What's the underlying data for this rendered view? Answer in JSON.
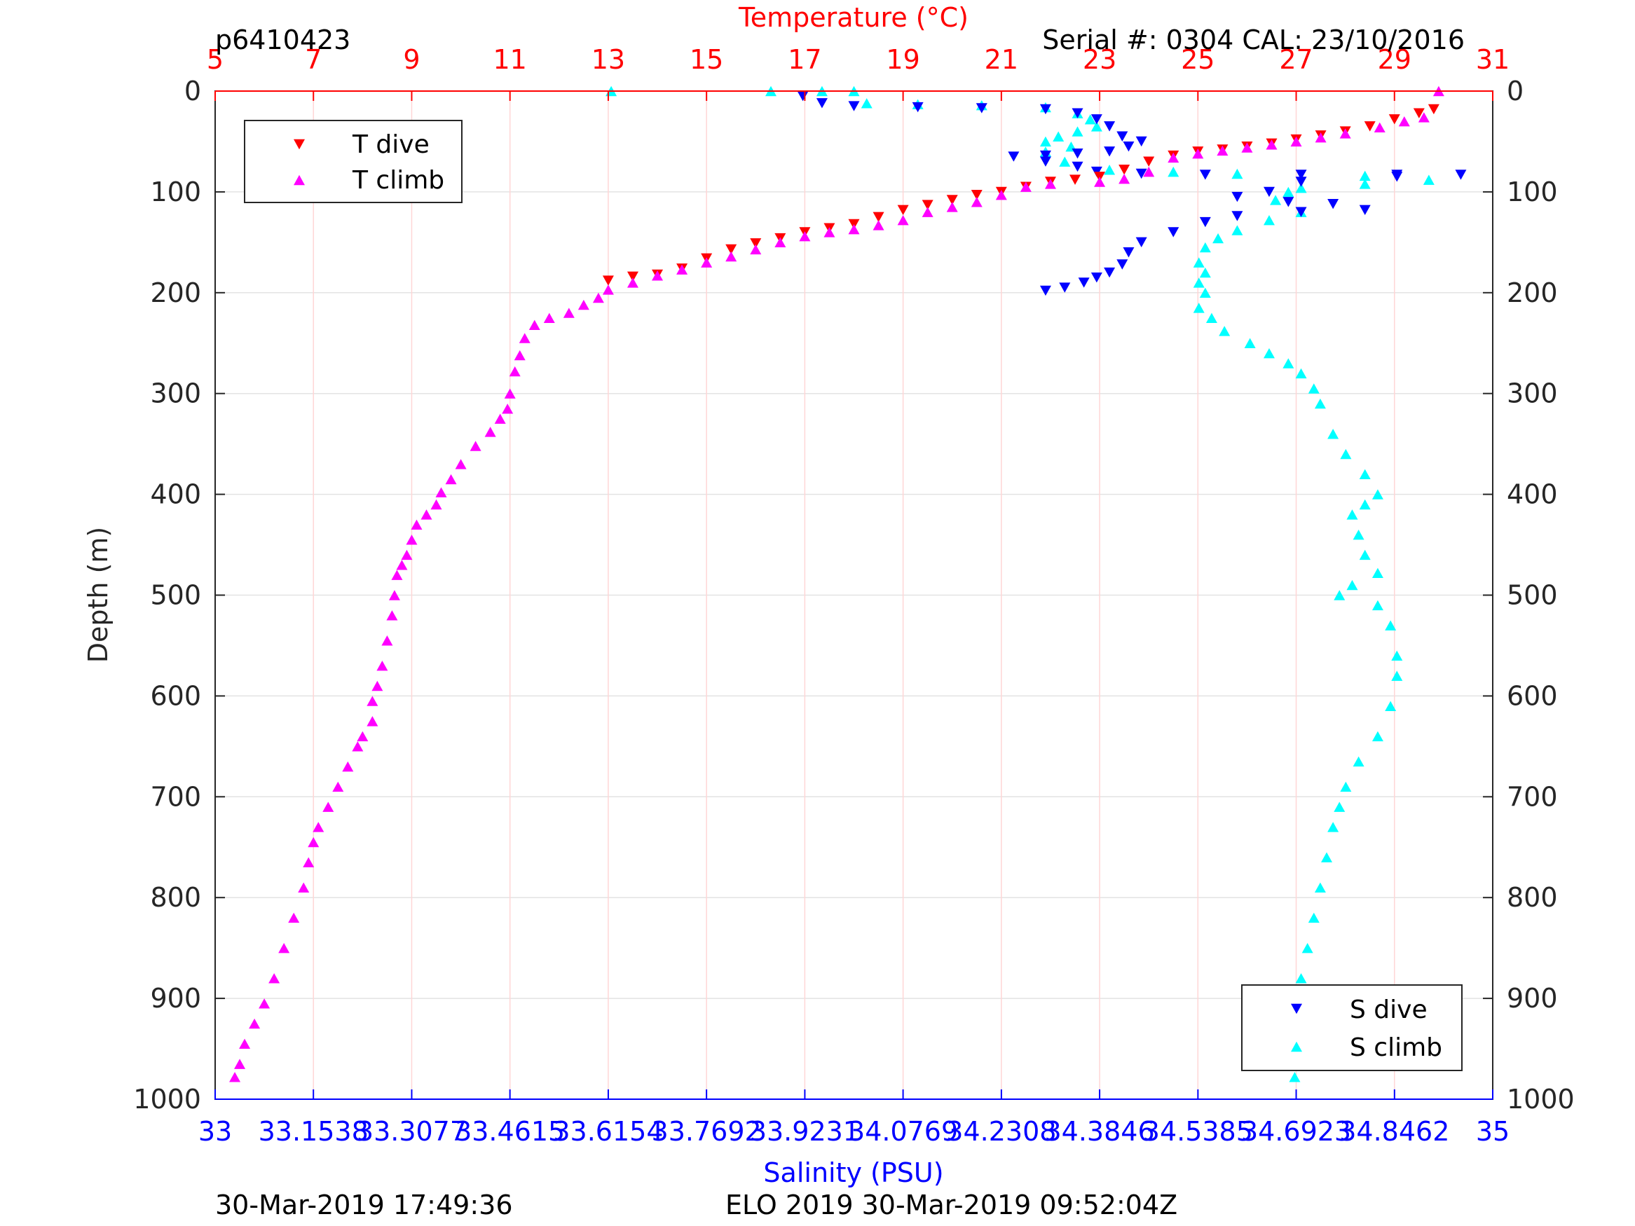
{
  "header": {
    "glider_id": "p6410423",
    "serial_cal": "Serial #: 0304  CAL: 23/10/2016"
  },
  "footer": {
    "left_timestamp": "30-Mar-2019 17:49:36",
    "center_text": "ELO 2019 30-Mar-2019 09:52:04Z"
  },
  "colors": {
    "t_dive": "#ff0000",
    "t_climb": "#ff00ff",
    "s_dive": "#0000ff",
    "s_climb": "#00ffff",
    "temp_axis": "#ff0000",
    "sal_axis": "#0000ff"
  },
  "chart_data": {
    "type": "scatter",
    "title": "",
    "ylabel": "Depth (m)",
    "ylim": [
      0,
      1000
    ],
    "y_reversed": true,
    "yticks": [
      "0",
      "100",
      "200",
      "300",
      "400",
      "500",
      "600",
      "700",
      "800",
      "900",
      "1000"
    ],
    "grid": true,
    "temperature_axis": {
      "label": "Temperature (°C)",
      "position": "top",
      "range": [
        5,
        31
      ],
      "ticks": [
        "5",
        "7",
        "9",
        "11",
        "13",
        "15",
        "17",
        "19",
        "21",
        "23",
        "25",
        "27",
        "29",
        "31"
      ]
    },
    "salinity_axis": {
      "label": "Salinity (PSU)",
      "position": "bottom",
      "range": [
        33,
        35
      ],
      "ticks": [
        "33",
        "33.1538",
        "33.3077",
        "33.4615",
        "33.6154",
        "33.7692",
        "33.9231",
        "34.0769",
        "34.2308",
        "34.3846",
        "34.5385",
        "34.6923",
        "34.8462",
        "35"
      ]
    },
    "legends": [
      {
        "placement": "top-left",
        "entries": [
          "T dive",
          "T climb"
        ]
      },
      {
        "placement": "bottom-right",
        "entries": [
          "S dive",
          "S climb"
        ]
      }
    ],
    "series": [
      {
        "name": "T dive",
        "axis": "temperature",
        "marker": "triangle-down",
        "points": [
          [
            29.8,
            18
          ],
          [
            29.5,
            22
          ],
          [
            29.0,
            28
          ],
          [
            28.5,
            35
          ],
          [
            28.0,
            40
          ],
          [
            27.5,
            44
          ],
          [
            27.0,
            48
          ],
          [
            26.5,
            52
          ],
          [
            26.0,
            55
          ],
          [
            25.5,
            58
          ],
          [
            25.0,
            60
          ],
          [
            24.5,
            64
          ],
          [
            24.0,
            70
          ],
          [
            23.5,
            78
          ],
          [
            23.0,
            85
          ],
          [
            22.5,
            88
          ],
          [
            22.0,
            90
          ],
          [
            21.5,
            95
          ],
          [
            21.0,
            100
          ],
          [
            20.5,
            103
          ],
          [
            20.0,
            108
          ],
          [
            19.5,
            113
          ],
          [
            19.0,
            118
          ],
          [
            18.5,
            125
          ],
          [
            18.0,
            132
          ],
          [
            17.5,
            136
          ],
          [
            17.0,
            140
          ],
          [
            16.5,
            146
          ],
          [
            16.0,
            151
          ],
          [
            15.5,
            157
          ],
          [
            15.0,
            166
          ],
          [
            14.5,
            176
          ],
          [
            14.0,
            182
          ],
          [
            13.5,
            184
          ],
          [
            13.0,
            188
          ]
        ]
      },
      {
        "name": "T climb",
        "axis": "temperature",
        "marker": "triangle-up",
        "points": [
          [
            29.9,
            0
          ],
          [
            29.6,
            26
          ],
          [
            29.2,
            30
          ],
          [
            28.7,
            36
          ],
          [
            28.0,
            42
          ],
          [
            27.5,
            46
          ],
          [
            27.0,
            50
          ],
          [
            26.5,
            53
          ],
          [
            26.0,
            56
          ],
          [
            25.5,
            59
          ],
          [
            25.0,
            62
          ],
          [
            24.5,
            66
          ],
          [
            24.0,
            80
          ],
          [
            23.5,
            87
          ],
          [
            23.0,
            90
          ],
          [
            22.0,
            92
          ],
          [
            21.5,
            95
          ],
          [
            21.0,
            103
          ],
          [
            20.5,
            110
          ],
          [
            20.0,
            115
          ],
          [
            19.5,
            120
          ],
          [
            19.0,
            128
          ],
          [
            18.5,
            133
          ],
          [
            18.0,
            137
          ],
          [
            17.5,
            140
          ],
          [
            17.0,
            144
          ],
          [
            16.5,
            150
          ],
          [
            16.0,
            157
          ],
          [
            15.5,
            164
          ],
          [
            15.0,
            170
          ],
          [
            14.5,
            177
          ],
          [
            14.0,
            183
          ],
          [
            13.5,
            190
          ],
          [
            13.0,
            197
          ],
          [
            12.8,
            205
          ],
          [
            12.5,
            212
          ],
          [
            12.2,
            220
          ],
          [
            11.8,
            225
          ],
          [
            11.5,
            232
          ],
          [
            11.3,
            245
          ],
          [
            11.2,
            262
          ],
          [
            11.1,
            278
          ],
          [
            11.0,
            300
          ],
          [
            10.95,
            315
          ],
          [
            10.8,
            325
          ],
          [
            10.6,
            338
          ],
          [
            10.3,
            352
          ],
          [
            10.0,
            370
          ],
          [
            9.8,
            385
          ],
          [
            9.6,
            398
          ],
          [
            9.5,
            410
          ],
          [
            9.3,
            420
          ],
          [
            9.1,
            430
          ],
          [
            9.0,
            445
          ],
          [
            8.9,
            460
          ],
          [
            8.8,
            470
          ],
          [
            8.7,
            480
          ],
          [
            8.65,
            500
          ],
          [
            8.6,
            520
          ],
          [
            8.5,
            545
          ],
          [
            8.4,
            570
          ],
          [
            8.3,
            590
          ],
          [
            8.2,
            605
          ],
          [
            8.2,
            625
          ],
          [
            8.0,
            640
          ],
          [
            7.9,
            650
          ],
          [
            7.7,
            670
          ],
          [
            7.5,
            690
          ],
          [
            7.3,
            710
          ],
          [
            7.1,
            730
          ],
          [
            7.0,
            745
          ],
          [
            6.9,
            765
          ],
          [
            6.8,
            790
          ],
          [
            6.6,
            820
          ],
          [
            6.4,
            850
          ],
          [
            6.2,
            880
          ],
          [
            6.0,
            905
          ],
          [
            5.8,
            925
          ],
          [
            5.6,
            945
          ],
          [
            5.5,
            965
          ],
          [
            5.4,
            978
          ]
        ]
      },
      {
        "name": "S dive",
        "axis": "salinity",
        "marker": "triangle-down",
        "points": [
          [
            33.92,
            5
          ],
          [
            33.95,
            12
          ],
          [
            34.0,
            15
          ],
          [
            34.1,
            16
          ],
          [
            34.2,
            17
          ],
          [
            34.3,
            18
          ],
          [
            34.35,
            22
          ],
          [
            34.38,
            28
          ],
          [
            34.4,
            35
          ],
          [
            34.42,
            45
          ],
          [
            34.45,
            50
          ],
          [
            34.43,
            55
          ],
          [
            34.4,
            60
          ],
          [
            34.35,
            62
          ],
          [
            34.3,
            64
          ],
          [
            34.25,
            65
          ],
          [
            34.3,
            70
          ],
          [
            34.35,
            75
          ],
          [
            34.38,
            80
          ],
          [
            34.45,
            82
          ],
          [
            34.55,
            83
          ],
          [
            34.7,
            83
          ],
          [
            34.85,
            83
          ],
          [
            34.95,
            83
          ],
          [
            34.85,
            85
          ],
          [
            34.7,
            90
          ],
          [
            34.65,
            100
          ],
          [
            34.6,
            105
          ],
          [
            34.68,
            110
          ],
          [
            34.75,
            112
          ],
          [
            34.8,
            118
          ],
          [
            34.7,
            120
          ],
          [
            34.6,
            124
          ],
          [
            34.55,
            130
          ],
          [
            34.5,
            140
          ],
          [
            34.45,
            150
          ],
          [
            34.43,
            160
          ],
          [
            34.42,
            172
          ],
          [
            34.4,
            180
          ],
          [
            34.38,
            185
          ],
          [
            34.36,
            190
          ],
          [
            34.33,
            195
          ],
          [
            34.3,
            198
          ]
        ]
      },
      {
        "name": "S climb",
        "axis": "salinity",
        "marker": "triangle-up",
        "points": [
          [
            33.62,
            0
          ],
          [
            33.87,
            0
          ],
          [
            33.95,
            0
          ],
          [
            34.0,
            0
          ],
          [
            34.02,
            12
          ],
          [
            34.1,
            13
          ],
          [
            34.2,
            14
          ],
          [
            34.3,
            16
          ],
          [
            34.35,
            22
          ],
          [
            34.37,
            28
          ],
          [
            34.38,
            35
          ],
          [
            34.35,
            40
          ],
          [
            34.32,
            45
          ],
          [
            34.3,
            50
          ],
          [
            34.34,
            55
          ],
          [
            34.3,
            60
          ],
          [
            34.33,
            70
          ],
          [
            34.4,
            78
          ],
          [
            34.5,
            80
          ],
          [
            34.6,
            82
          ],
          [
            34.8,
            84
          ],
          [
            34.9,
            88
          ],
          [
            34.8,
            92
          ],
          [
            34.7,
            96
          ],
          [
            34.68,
            100
          ],
          [
            34.66,
            108
          ],
          [
            34.7,
            120
          ],
          [
            34.65,
            128
          ],
          [
            34.6,
            138
          ],
          [
            34.57,
            146
          ],
          [
            34.55,
            155
          ],
          [
            34.54,
            170
          ],
          [
            34.55,
            180
          ],
          [
            34.54,
            190
          ],
          [
            34.55,
            200
          ],
          [
            34.54,
            215
          ],
          [
            34.56,
            225
          ],
          [
            34.58,
            238
          ],
          [
            34.62,
            250
          ],
          [
            34.65,
            260
          ],
          [
            34.68,
            270
          ],
          [
            34.7,
            280
          ],
          [
            34.72,
            295
          ],
          [
            34.73,
            310
          ],
          [
            34.75,
            340
          ],
          [
            34.77,
            360
          ],
          [
            34.8,
            380
          ],
          [
            34.82,
            400
          ],
          [
            34.8,
            410
          ],
          [
            34.78,
            420
          ],
          [
            34.79,
            440
          ],
          [
            34.8,
            460
          ],
          [
            34.82,
            478
          ],
          [
            34.78,
            490
          ],
          [
            34.76,
            500
          ],
          [
            34.82,
            510
          ],
          [
            34.84,
            530
          ],
          [
            34.85,
            560
          ],
          [
            34.85,
            580
          ],
          [
            34.84,
            610
          ],
          [
            34.82,
            640
          ],
          [
            34.79,
            665
          ],
          [
            34.77,
            690
          ],
          [
            34.76,
            710
          ],
          [
            34.75,
            730
          ],
          [
            34.74,
            760
          ],
          [
            34.73,
            790
          ],
          [
            34.72,
            820
          ],
          [
            34.71,
            850
          ],
          [
            34.7,
            880
          ],
          [
            34.69,
            905
          ],
          [
            34.69,
            930
          ],
          [
            34.7,
            955
          ],
          [
            34.69,
            978
          ]
        ]
      }
    ]
  }
}
